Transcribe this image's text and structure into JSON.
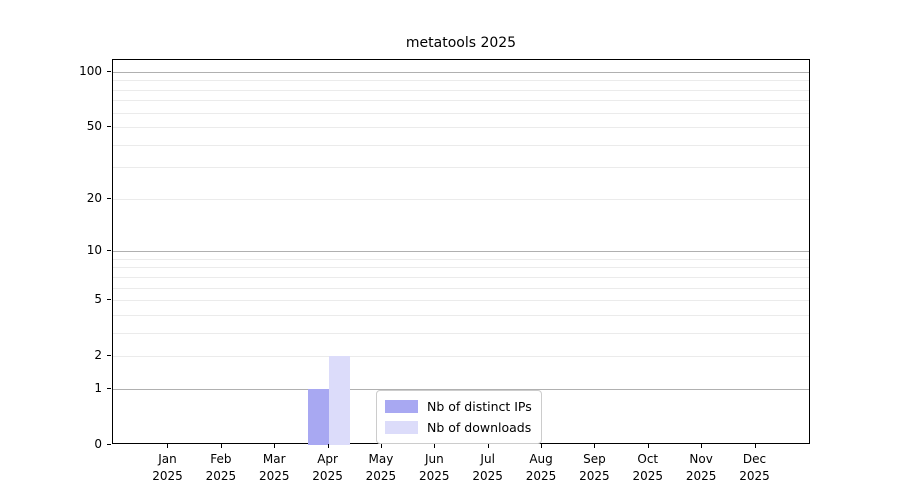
{
  "chart_data": {
    "type": "bar",
    "title": "metatools 2025",
    "categories": [
      "Jan",
      "Feb",
      "Mar",
      "Apr",
      "May",
      "Jun",
      "Jul",
      "Aug",
      "Sep",
      "Oct",
      "Nov",
      "Dec"
    ],
    "category_sublabel": "2025",
    "series": [
      {
        "name": "Nb of distinct IPs",
        "color": "#a8a8f2",
        "values": [
          0,
          0,
          0,
          1,
          0,
          0,
          0,
          0,
          0,
          0,
          0,
          0
        ]
      },
      {
        "name": "Nb of downloads",
        "color": "#dcdcfa",
        "values": [
          0,
          0,
          0,
          2,
          0,
          0,
          0,
          0,
          0,
          0,
          0,
          0
        ]
      }
    ],
    "xlabel": "",
    "ylabel": "",
    "yscale": "log1p",
    "ylim": [
      0,
      116
    ],
    "yticks": [
      0,
      1,
      2,
      5,
      10,
      20,
      50,
      100
    ],
    "major_gridlines": [
      1,
      10,
      100
    ],
    "minor_gridlines": [
      2,
      3,
      4,
      5,
      6,
      7,
      8,
      9,
      20,
      30,
      40,
      50,
      60,
      70,
      80,
      90
    ],
    "grid": true,
    "legend_position": "bottom-center"
  },
  "colors": {
    "major_grid": "#b0b0b0",
    "minor_grid": "#ebebeb",
    "axis": "#000000",
    "background": "#ffffff"
  }
}
